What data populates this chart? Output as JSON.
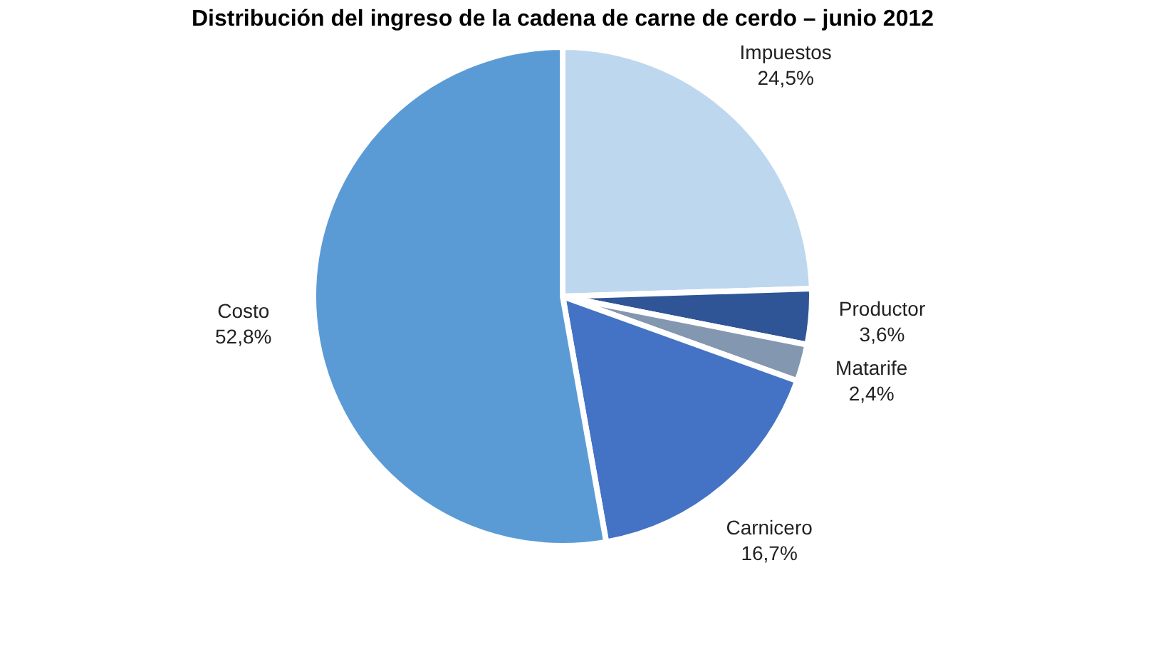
{
  "chart_data": {
    "type": "pie",
    "title": "Distribución del ingreso de la cadena de carne de cerdo – junio 2012",
    "categories": [
      "Impuestos",
      "Productor",
      "Matarife",
      "Carnicero",
      "Costo"
    ],
    "values": [
      24.5,
      3.6,
      2.4,
      16.7,
      52.8
    ],
    "colors": [
      "#bdd7ee",
      "#2f5597",
      "#8497b0",
      "#4472c4",
      "#5b9bd5"
    ],
    "value_labels": [
      "24,5%",
      "3,6%",
      "2,4%",
      "16,7%",
      "52,8%"
    ],
    "legend": false
  }
}
